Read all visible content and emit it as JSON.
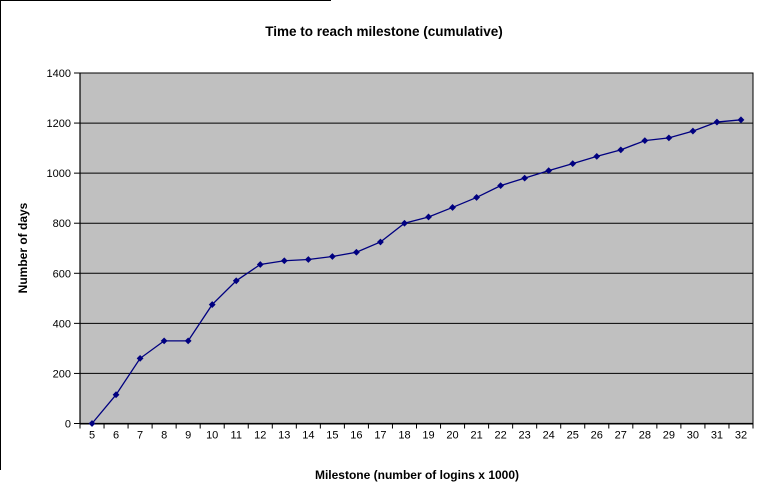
{
  "chart_data": {
    "type": "line",
    "title": "Time to reach milestone (cumulative)",
    "xlabel": "Milestone (number of logins x 1000)",
    "ylabel": "Number of days",
    "categories": [
      5,
      6,
      7,
      8,
      9,
      10,
      11,
      12,
      13,
      14,
      15,
      16,
      17,
      18,
      19,
      20,
      21,
      22,
      23,
      24,
      25,
      26,
      27,
      28,
      29,
      30,
      31,
      32
    ],
    "values": [
      0,
      115,
      260,
      330,
      330,
      475,
      570,
      635,
      650,
      655,
      667,
      684,
      725,
      800,
      825,
      863,
      903,
      950,
      980,
      1010,
      1038,
      1067,
      1093,
      1130,
      1141,
      1168,
      1204,
      1213
    ],
    "ylim": [
      0,
      1400
    ],
    "ytick_step": 200,
    "grid": true,
    "legend_position": "none",
    "marker": "diamond",
    "colors": {
      "line": "#000080",
      "marker": "#000080",
      "plot_background": "#c0c0c0",
      "gridline": "#000000",
      "axis": "#000000",
      "text": "#000000",
      "page_background": "#ffffff"
    }
  }
}
